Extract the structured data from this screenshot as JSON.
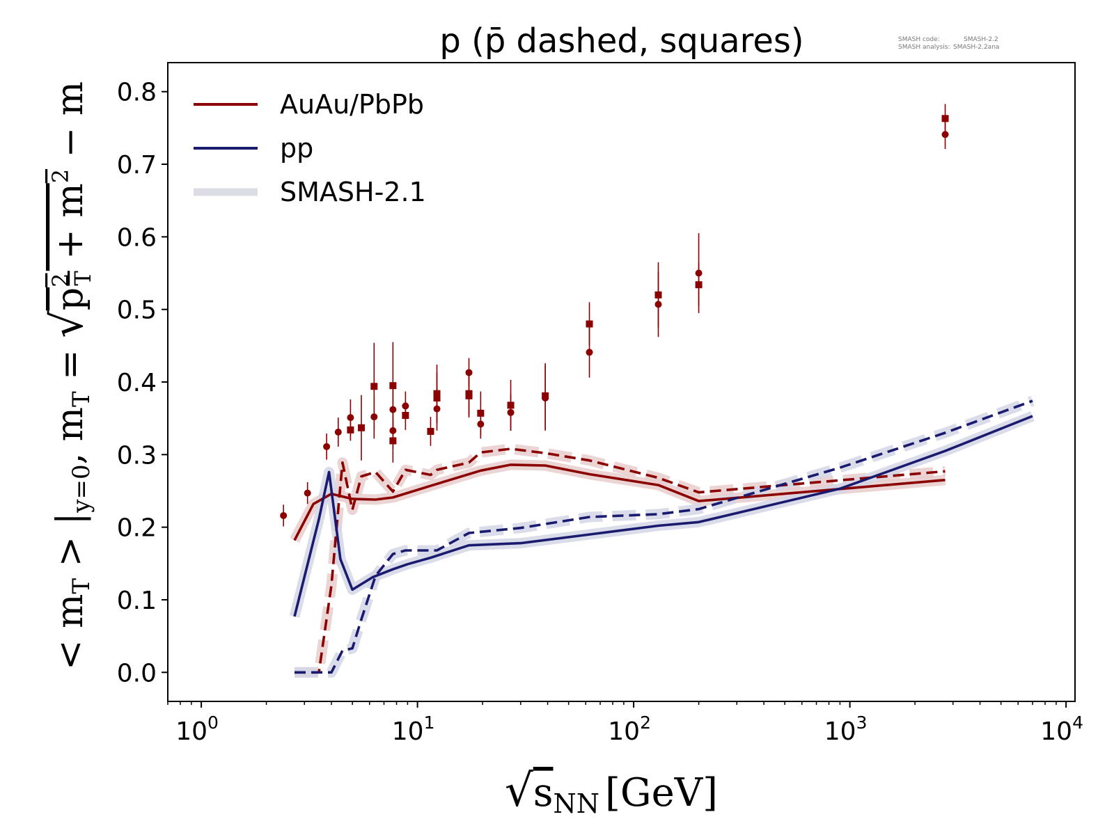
{
  "chart_data": {
    "type": "line",
    "title": "p (p̄ dashed, squares)",
    "meta": {
      "code_label": "SMASH code:",
      "code_value": "SMASH-2.2",
      "analysis_label": "SMASH analysis:",
      "analysis_value": "SMASH-2.2ana"
    },
    "xlabel": {
      "sqrt": "√",
      "main": "s",
      "sub": "NN",
      "unit": "[GeV]"
    },
    "ylabel": {
      "part1": "< m",
      "part1_sub": "T",
      "part2": " > |",
      "part2_sub": "y=0",
      "part3": ", m",
      "part3_sub": "T",
      "part4": " = ",
      "rad_p": "p",
      "rad_p_sup": "2",
      "rad_p_sub": "T",
      "rad_plus": " + m",
      "rad_m_sup": "2",
      "tail": " − m"
    },
    "x_scale": "log",
    "xlim": [
      0.7,
      11000
    ],
    "ylim": [
      -0.04,
      0.84
    ],
    "x_ticks": [
      {
        "base": "10",
        "exp": "0",
        "value": 1
      },
      {
        "base": "10",
        "exp": "1",
        "value": 10
      },
      {
        "base": "10",
        "exp": "2",
        "value": 100
      },
      {
        "base": "10",
        "exp": "3",
        "value": 1000
      },
      {
        "base": "10",
        "exp": "4",
        "value": 10000
      }
    ],
    "y_ticks": [
      "0.0",
      "0.1",
      "0.2",
      "0.3",
      "0.4",
      "0.5",
      "0.6",
      "0.7",
      "0.8"
    ],
    "colors": {
      "aa": "#8b0000",
      "pp": "#1a1a6e",
      "aa_band": "#e8cccc",
      "pp_band": "#d4d6e6",
      "smash21": "#dcdce4"
    },
    "legend": {
      "position": "upper-left",
      "entries": [
        {
          "label": "AuAu/PbPb",
          "color": "#8b0000"
        },
        {
          "label": "pp",
          "color": "#1a1a6e"
        },
        {
          "label": "SMASH-2.1",
          "color": "#dcdce4"
        }
      ]
    },
    "series": [
      {
        "kind": "line",
        "system": "AuAu/PbPb",
        "particle": "p",
        "style": "solid",
        "x": [
          2.7,
          3.3,
          4.0,
          5.0,
          6.4,
          7.7,
          11.5,
          19.6,
          27,
          39,
          62.4,
          130,
          200,
          2760
        ],
        "y": [
          0.182,
          0.232,
          0.246,
          0.239,
          0.238,
          0.241,
          0.257,
          0.278,
          0.286,
          0.285,
          0.273,
          0.258,
          0.236,
          0.265
        ]
      },
      {
        "kind": "line",
        "system": "AuAu/PbPb",
        "particle": "pbar",
        "style": "dashed",
        "x": [
          2.7,
          3.5,
          4.0,
          4.5,
          5.0,
          5.5,
          6.4,
          7.7,
          8.8,
          11.5,
          12.3,
          17.3,
          19.6,
          27,
          39,
          62.4,
          130,
          200,
          2760
        ],
        "y": [
          0.0,
          0.0,
          0.12,
          0.289,
          0.224,
          0.27,
          0.276,
          0.249,
          0.279,
          0.272,
          0.279,
          0.289,
          0.303,
          0.308,
          0.302,
          0.292,
          0.268,
          0.248,
          0.277
        ]
      },
      {
        "kind": "line",
        "system": "pp",
        "particle": "p",
        "style": "solid",
        "x": [
          2.7,
          3.5,
          3.9,
          4.4,
          5.0,
          6.2,
          7.7,
          9.0,
          11.5,
          17.3,
          30,
          62.4,
          130,
          200,
          900,
          2760,
          7000
        ],
        "y": [
          0.077,
          0.211,
          0.276,
          0.156,
          0.114,
          0.131,
          0.142,
          0.149,
          0.158,
          0.175,
          0.178,
          0.19,
          0.202,
          0.207,
          0.253,
          0.305,
          0.353
        ]
      },
      {
        "kind": "line",
        "system": "pp",
        "particle": "pbar",
        "style": "dashed",
        "x": [
          2.7,
          4.0,
          4.5,
          5.0,
          5.5,
          6.4,
          7.7,
          8.8,
          10,
          12.3,
          17.3,
          30,
          62.4,
          130,
          200,
          900,
          2760,
          7000
        ],
        "y": [
          0.0,
          0.0,
          0.03,
          0.033,
          0.073,
          0.133,
          0.163,
          0.168,
          0.168,
          0.168,
          0.192,
          0.199,
          0.214,
          0.218,
          0.225,
          0.282,
          0.33,
          0.374
        ]
      },
      {
        "kind": "points",
        "system": "AuAu/PbPb",
        "particle": "p",
        "marker": "circle",
        "x": [
          2.4,
          3.1,
          3.8,
          4.3,
          4.9,
          6.3,
          7.7,
          7.7,
          8.8,
          12.3,
          17.3,
          19.6,
          27,
          39,
          62.4,
          130,
          200,
          2760
        ],
        "y": [
          0.216,
          0.247,
          0.311,
          0.331,
          0.351,
          0.352,
          0.362,
          0.333,
          0.367,
          0.363,
          0.413,
          0.342,
          0.358,
          0.378,
          0.441,
          0.507,
          0.55,
          0.741
        ],
        "err": [
          0.015,
          0.015,
          0.018,
          0.02,
          0.025,
          0.03,
          0.035,
          0.025,
          0.02,
          0.03,
          0.02,
          0.02,
          0.025,
          0.045,
          0.035,
          0.045,
          0.055,
          0.02
        ]
      },
      {
        "kind": "points",
        "system": "AuAu/PbPb",
        "particle": "pbar",
        "marker": "square",
        "x": [
          4.9,
          5.5,
          6.3,
          7.7,
          7.7,
          8.8,
          11.5,
          12.3,
          12.3,
          17.3,
          17.3,
          19.6,
          27,
          39,
          62.4,
          130,
          200,
          2760
        ],
        "y": [
          0.334,
          0.337,
          0.394,
          0.395,
          0.319,
          0.354,
          0.332,
          0.384,
          0.378,
          0.384,
          0.381,
          0.357,
          0.368,
          0.381,
          0.48,
          0.52,
          0.534,
          0.763
        ],
        "err": [
          0.015,
          0.045,
          0.06,
          0.06,
          0.03,
          0.02,
          0.02,
          0.04,
          0.035,
          0.03,
          0.03,
          0.03,
          0.035,
          0.045,
          0.03,
          0.045,
          0.03,
          0.02
        ]
      }
    ]
  }
}
